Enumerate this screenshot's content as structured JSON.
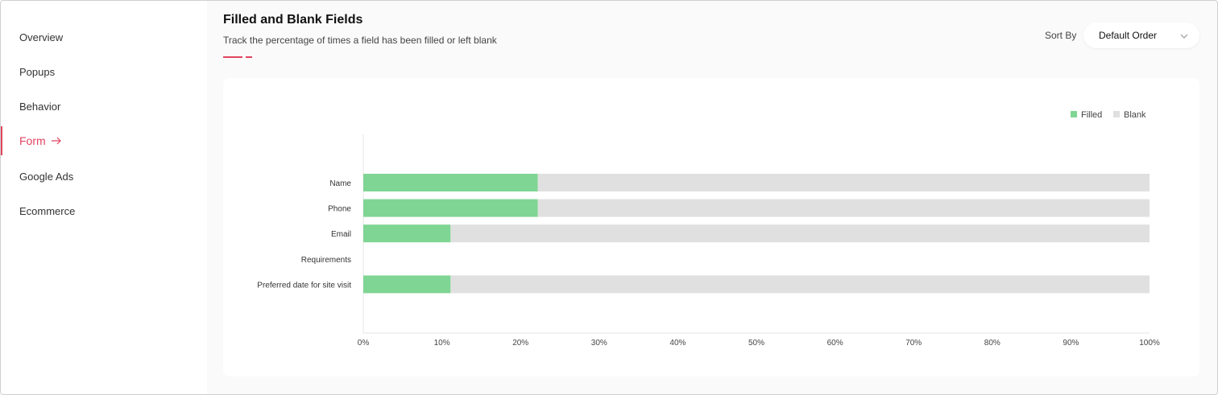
{
  "sidebar": {
    "items": [
      {
        "label": "Overview",
        "active": false
      },
      {
        "label": "Popups",
        "active": false
      },
      {
        "label": "Behavior",
        "active": false
      },
      {
        "label": "Form",
        "active": true
      },
      {
        "label": "Google Ads",
        "active": false
      },
      {
        "label": "Ecommerce",
        "active": false
      }
    ]
  },
  "header": {
    "title": "Filled and Blank Fields",
    "subtitle": "Track the percentage of times a field has been filled or left blank",
    "sort_label": "Sort By",
    "sort_value": "Default Order"
  },
  "colors": {
    "accent": "#e0455f",
    "filled": "#7fd593",
    "blank": "#e0e0e0"
  },
  "chart_data": {
    "type": "bar",
    "orientation": "horizontal",
    "stacked": true,
    "categories": [
      "Name",
      "Phone",
      "Email",
      "Requirements",
      "Preferred date for site visit"
    ],
    "series": [
      {
        "name": "Filled",
        "values": [
          22.2,
          22.2,
          11.1,
          0,
          11.1
        ]
      },
      {
        "name": "Blank",
        "values": [
          77.8,
          77.8,
          88.9,
          0,
          88.9
        ]
      }
    ],
    "xlim": [
      0,
      100
    ],
    "x_ticks": [
      "0%",
      "10%",
      "20%",
      "30%",
      "40%",
      "50%",
      "60%",
      "70%",
      "80%",
      "90%",
      "100%"
    ],
    "legend_position": "top-right",
    "grid": false
  }
}
